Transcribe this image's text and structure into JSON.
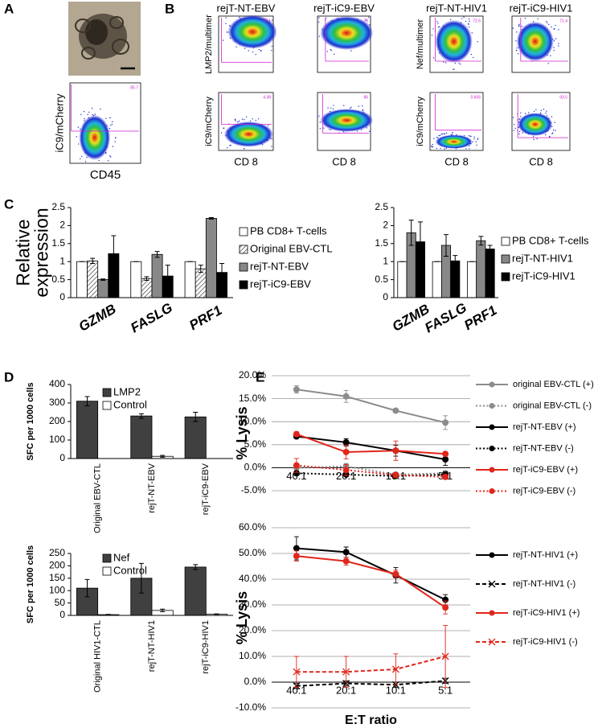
{
  "panel_labels": [
    "A",
    "B",
    "C",
    "D",
    "E"
  ],
  "flow_plots": [
    {
      "y_label": "iC9/mCherry",
      "x_label": "CD45",
      "gate_value": "85.7"
    },
    {
      "title": "rejT-NT-EBV",
      "y_label": "LMP2/multimer",
      "gate_value": "97.1"
    },
    {
      "title": "rejT-iC9-EBV",
      "gate_value": "79"
    },
    {
      "title": "rejT-NT-HIV1",
      "y_label": "Nef/multimer",
      "gate_value": "72.6"
    },
    {
      "title": "rejT-iC9-HIV1",
      "gate_value": "71.4"
    },
    {
      "y_label": "iC9/mCherry",
      "x_label": "CD 8",
      "gate_value": "4.38"
    },
    {
      "x_label": "CD 8",
      "gate_value": "86"
    },
    {
      "y_label": "iC9/mCherry",
      "x_label": "CD 8",
      "gate_value": "0.606"
    },
    {
      "x_label": "CD 8",
      "gate_value": "93.5"
    }
  ],
  "chart_data": [
    {
      "type": "bar",
      "y_label": "Relative expression",
      "categories": [
        "GZMB",
        "FASLG",
        "PRF1"
      ],
      "series": [
        {
          "name": "PB CD8+ T-cells",
          "color": "#ffffff",
          "values": [
            1,
            1,
            1
          ],
          "errors": [
            0,
            0,
            0
          ]
        },
        {
          "name": "Original EBV-CTL",
          "color": "#bbbbbb",
          "pattern": "hatch",
          "values": [
            1.02,
            0.53,
            0.8
          ],
          "errors": [
            0.07,
            0.05,
            0.1
          ]
        },
        {
          "name": "rejT-NT-EBV",
          "color": "#888888",
          "values": [
            0.5,
            1.2,
            2.2
          ],
          "errors": [
            0.02,
            0.08,
            0.02
          ]
        },
        {
          "name": "rejT-iC9-EBV",
          "color": "#000000",
          "values": [
            1.22,
            0.6,
            0.7
          ],
          "errors": [
            0.5,
            0.3,
            0.25
          ]
        }
      ],
      "ylim": [
        0,
        2.5
      ],
      "yticks": [
        0,
        0.5,
        1,
        1.5,
        2,
        2.5
      ],
      "legend": "right"
    },
    {
      "type": "bar",
      "categories": [
        "GZMB",
        "FASLG",
        "PRF1"
      ],
      "series": [
        {
          "name": "PB CD8+ T-cells",
          "color": "#ffffff",
          "values": [
            1,
            1,
            1
          ],
          "errors": [
            0,
            0,
            0
          ]
        },
        {
          "name": "rejT-NT-HIV1",
          "color": "#888888",
          "values": [
            1.8,
            1.45,
            1.58
          ],
          "errors": [
            0.35,
            0.3,
            0.12
          ]
        },
        {
          "name": "rejT-iC9-HIV1",
          "color": "#000000",
          "values": [
            1.55,
            1.02,
            1.35
          ],
          "errors": [
            0.55,
            0.15,
            0.1
          ]
        }
      ],
      "ylim": [
        0,
        2.5
      ],
      "yticks": [
        0,
        0.5,
        1,
        1.5,
        2,
        2.5
      ],
      "legend": "right"
    },
    {
      "type": "bar",
      "y_label": "SFC per 1000 cells",
      "categories": [
        "Original EBV-CTL",
        "rejT-NT-EBV",
        "rejT-iC9-EBV"
      ],
      "series": [
        {
          "name": "LMP2",
          "color": "#404040",
          "values": [
            310,
            230,
            225
          ],
          "errors": [
            25,
            12,
            25
          ]
        },
        {
          "name": "Control",
          "color": "#ffffff",
          "values": [
            0,
            12,
            0
          ],
          "errors": [
            0,
            5,
            0
          ]
        }
      ],
      "ylim": [
        0,
        400
      ],
      "yticks": [
        0,
        100,
        200,
        300,
        400
      ],
      "legend": "upper left"
    },
    {
      "type": "bar",
      "y_label": "SFC per 1000 cells",
      "categories": [
        "Original HIV1-CTL",
        "rejT-NT-HIV1",
        "rejT-iC9-HIV1"
      ],
      "series": [
        {
          "name": "Nef",
          "color": "#404040",
          "values": [
            110,
            150,
            195
          ],
          "errors": [
            35,
            60,
            10
          ]
        },
        {
          "name": "Control",
          "color": "#ffffff",
          "values": [
            3,
            20,
            5
          ],
          "errors": [
            1,
            5,
            1
          ]
        }
      ],
      "ylim": [
        0,
        250
      ],
      "yticks": [
        0,
        50,
        100,
        150,
        200,
        250
      ],
      "legend": "upper left"
    },
    {
      "type": "line",
      "y_label": "% Lysis",
      "categories": [
        "40:1",
        "20:1",
        "10:1",
        "5:1"
      ],
      "series": [
        {
          "name": "original EBV-CTL (+)",
          "color": "#8c8c8c",
          "dash": "solid",
          "marker": "circle",
          "values": [
            17,
            15.5,
            12.4,
            9.8
          ],
          "errors": [
            0.8,
            1.3,
            0.4,
            1.5
          ]
        },
        {
          "name": "original EBV-CTL (-)",
          "color": "#8c8c8c",
          "dash": "dotted",
          "marker": "circle",
          "values": [
            0,
            0.3,
            -1.5,
            -1.2
          ],
          "errors": [
            0.8,
            0.6,
            0.4,
            0.5
          ]
        },
        {
          "name": "rejT-NT-EBV (+)",
          "color": "#000000",
          "dash": "solid",
          "marker": "circle",
          "values": [
            6.8,
            5.5,
            3.7,
            1.8
          ],
          "errors": [
            0.4,
            0.8,
            1.2,
            1.3
          ]
        },
        {
          "name": "rejT-NT-EBV (-)",
          "color": "#000000",
          "dash": "dotted",
          "marker": "circle",
          "values": [
            -1.2,
            -1.5,
            -1.8,
            -1.5
          ],
          "errors": [
            0.5,
            0.4,
            0.3,
            0.6
          ]
        },
        {
          "name": "rejT-iC9-EBV (+)",
          "color": "#e0261b",
          "dash": "solid",
          "marker": "circle",
          "values": [
            7.3,
            3.4,
            3.7,
            3.0
          ],
          "errors": [
            0.5,
            1.5,
            2.1,
            0.2
          ]
        },
        {
          "name": "rejT-iC9-EBV (-)",
          "color": "#e0261b",
          "dash": "dotted",
          "marker": "circle",
          "values": [
            0.5,
            -0.5,
            -1.6,
            -2
          ],
          "errors": [
            1.5,
            1.2,
            0.5,
            0.5
          ]
        }
      ],
      "ylim": [
        -5,
        20
      ],
      "yticks": [
        {
          "value": -5,
          "label": "-5.0%"
        },
        {
          "value": 0,
          "label": "0.0%"
        },
        {
          "value": 5,
          "label": "5.0%"
        },
        {
          "value": 10,
          "label": "10.0%"
        },
        {
          "value": 15,
          "label": "15.0%"
        },
        {
          "value": 20,
          "label": "20.0%"
        }
      ],
      "grid": true,
      "legend": "right"
    },
    {
      "type": "line",
      "y_label": "% Lysis",
      "x_label": "E:T ratio",
      "categories": [
        "40:1",
        "20:1",
        "10:1",
        "5:1"
      ],
      "series": [
        {
          "name": "rejT-NT-HIV1 (+)",
          "color": "#000000",
          "dash": "solid",
          "marker": "circle",
          "values": [
            52,
            50.5,
            41.5,
            32
          ],
          "errors": [
            4.5,
            2,
            3,
            2
          ]
        },
        {
          "name": "rejT-NT-HIV1 (-)",
          "color": "#000000",
          "dash": "dashed",
          "marker": "x",
          "values": [
            -1.5,
            -0.5,
            -1,
            0.5
          ],
          "errors": [
            1,
            1,
            1,
            1
          ]
        },
        {
          "name": "rejT-iC9-HIV1 (+)",
          "color": "#e0261b",
          "dash": "solid",
          "marker": "circle",
          "values": [
            49,
            47,
            42,
            29
          ],
          "errors": [
            2,
            1.5,
            1.5,
            2.5
          ]
        },
        {
          "name": "rejT-iC9-HIV1 (-)",
          "color": "#e0261b",
          "dash": "dashed",
          "marker": "x",
          "values": [
            4,
            4,
            5,
            10
          ],
          "errors": [
            6,
            6,
            6,
            12
          ]
        }
      ],
      "ylim": [
        -10,
        60
      ],
      "yticks": [
        {
          "value": -10,
          "label": "-10.0%"
        },
        {
          "value": 0,
          "label": "0.0%"
        },
        {
          "value": 10,
          "label": "10.0%"
        },
        {
          "value": 20,
          "label": "20.0%"
        },
        {
          "value": 30,
          "label": "30.0%"
        },
        {
          "value": 40,
          "label": "40.0%"
        },
        {
          "value": 50,
          "label": "50.0%"
        },
        {
          "value": 60,
          "label": "60.0%"
        }
      ],
      "grid": true,
      "legend": "right"
    }
  ]
}
